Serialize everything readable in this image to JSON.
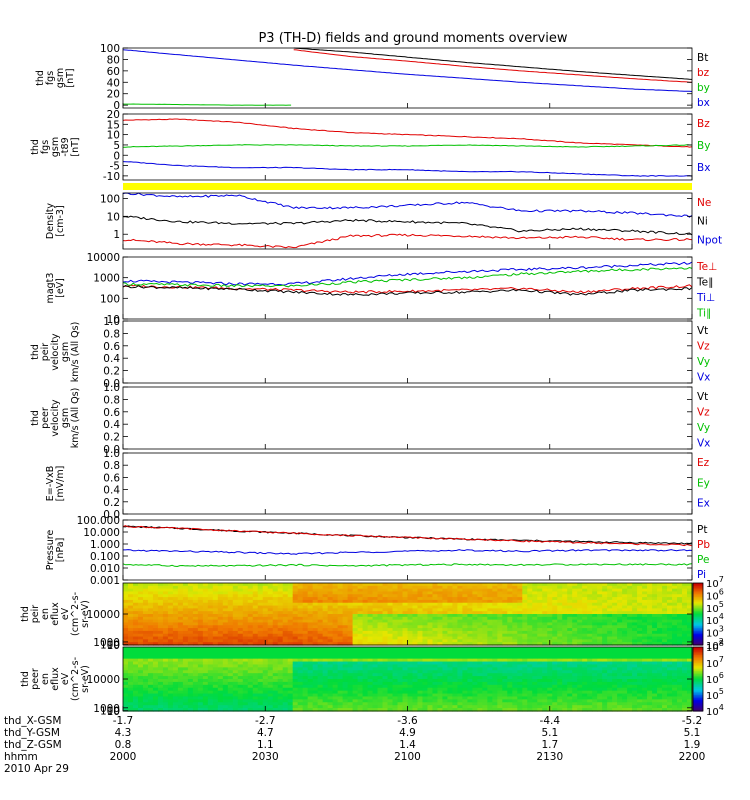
{
  "title": "P3 (TH-D) fields and ground moments overview",
  "colors": {
    "black": "#000000",
    "red": "#e00000",
    "green": "#00c000",
    "blue": "#0000e0",
    "yellow": "#ffff00"
  },
  "chart_data": [
    {
      "id": "fgs_total",
      "type": "line",
      "ylabel": [
        "thd",
        "fgs",
        "gsm",
        "[nT]"
      ],
      "ylim": [
        -5,
        100
      ],
      "yticks": [
        "100",
        "80",
        "60",
        "40",
        "20",
        "0"
      ],
      "ytick_values": [
        100,
        80,
        60,
        40,
        20,
        0
      ],
      "x": [
        0,
        0.1,
        0.2,
        0.3,
        0.4,
        0.5,
        0.6,
        0.7,
        0.8,
        0.9,
        1
      ],
      "series": [
        {
          "name": "Bt",
          "color": "black",
          "values": [
            null,
            null,
            null,
            100,
            93,
            84,
            75,
            67,
            59,
            52,
            45
          ]
        },
        {
          "name": "bz",
          "color": "red",
          "values": [
            null,
            null,
            null,
            97,
            85,
            77,
            68,
            60,
            53,
            46,
            40
          ]
        },
        {
          "name": "by",
          "color": "green",
          "values": [
            2,
            1,
            0,
            0,
            null,
            null,
            null,
            null,
            null,
            null,
            null
          ]
        },
        {
          "name": "bx",
          "color": "blue",
          "values": [
            97,
            88,
            79,
            70,
            62,
            54,
            47,
            40,
            34,
            28,
            24
          ]
        }
      ]
    },
    {
      "id": "fgs_components",
      "type": "line",
      "ylabel": [
        "thd",
        "fgs",
        "gsm",
        "-t89",
        "[nT]"
      ],
      "ylim": [
        -12,
        20
      ],
      "yticks": [
        "20",
        "15",
        "10",
        "5",
        "0",
        "-5",
        "-10"
      ],
      "ytick_values": [
        20,
        15,
        10,
        5,
        0,
        -5,
        -10
      ],
      "x": [
        0,
        0.1,
        0.2,
        0.3,
        0.4,
        0.5,
        0.6,
        0.7,
        0.8,
        0.9,
        1
      ],
      "series": [
        {
          "name": "Bz",
          "color": "red",
          "values": [
            17,
            17.5,
            16,
            13,
            11,
            10,
            9,
            8,
            6,
            5,
            4
          ]
        },
        {
          "name": "By",
          "color": "green",
          "values": [
            4,
            4.5,
            5,
            5,
            4.5,
            4.5,
            5,
            4.5,
            4,
            4.5,
            5
          ]
        },
        {
          "name": "Bx",
          "color": "blue",
          "values": [
            -3,
            -5,
            -6,
            -6,
            -7,
            -7,
            -8,
            -8,
            -9,
            -10,
            -10
          ]
        }
      ]
    },
    {
      "id": "density",
      "type": "line",
      "log": true,
      "ylabel": [
        "Density",
        "[cm-3]"
      ],
      "ylim": [
        0.15,
        200
      ],
      "yticks": [
        "100",
        "10",
        "1"
      ],
      "ytick_values": [
        100,
        10,
        1
      ],
      "x": [
        0,
        0.1,
        0.2,
        0.3,
        0.4,
        0.5,
        0.6,
        0.7,
        0.8,
        0.9,
        1
      ],
      "series": [
        {
          "name": "Ne",
          "color": "red",
          "values": [
            0.5,
            0.3,
            0.25,
            0.18,
            0.8,
            0.9,
            0.8,
            0.6,
            0.7,
            0.5,
            0.5
          ]
        },
        {
          "name": "Ni",
          "color": "black",
          "values": [
            10,
            5,
            4,
            4,
            6,
            5,
            4,
            1.5,
            2,
            1.5,
            1
          ]
        },
        {
          "name": "Npot",
          "color": "blue",
          "values": [
            200,
            120,
            150,
            30,
            30,
            40,
            60,
            20,
            20,
            15,
            10
          ]
        }
      ]
    },
    {
      "id": "temperature",
      "type": "line",
      "log": true,
      "ylabel": [
        "magt3",
        "[eV]"
      ],
      "ylim": [
        10,
        10000
      ],
      "yticks": [
        "10000",
        "1000",
        "100",
        "10"
      ],
      "ytick_values": [
        10000,
        1000,
        100,
        10
      ],
      "x": [
        0,
        0.1,
        0.2,
        0.3,
        0.4,
        0.5,
        0.6,
        0.7,
        0.8,
        0.9,
        1
      ],
      "series": [
        {
          "name": "Te⊥",
          "color": "red",
          "values": [
            400,
            350,
            300,
            250,
            200,
            220,
            250,
            300,
            200,
            300,
            400
          ]
        },
        {
          "name": "Te∥",
          "color": "black",
          "values": [
            380,
            320,
            280,
            200,
            150,
            180,
            200,
            250,
            150,
            250,
            300
          ]
        },
        {
          "name": "Ti⊥",
          "color": "blue",
          "values": [
            700,
            600,
            500,
            500,
            900,
            1500,
            2000,
            2500,
            3000,
            4000,
            5000
          ]
        },
        {
          "name": "Ti∥",
          "color": "green",
          "values": [
            500,
            450,
            400,
            400,
            600,
            800,
            1000,
            1500,
            2000,
            2500,
            3000
          ]
        }
      ]
    },
    {
      "id": "peir_velocity",
      "type": "line",
      "ylabel": [
        "thd",
        "peir",
        "velocity",
        "gsm",
        "km/s (All Qs)"
      ],
      "ylim": [
        0,
        1
      ],
      "yticks": [
        "1.0",
        "0.8",
        "0.6",
        "0.4",
        "0.2",
        "0.0"
      ],
      "ytick_values": [
        1,
        0.8,
        0.6,
        0.4,
        0.2,
        0
      ],
      "legend": [
        {
          "name": "Vt",
          "color": "black"
        },
        {
          "name": "Vz",
          "color": "red"
        },
        {
          "name": "Vy",
          "color": "green"
        },
        {
          "name": "Vx",
          "color": "blue"
        }
      ]
    },
    {
      "id": "peer_velocity",
      "type": "line",
      "ylabel": [
        "thd",
        "peer",
        "velocity",
        "gsm",
        "km/s (All Qs)"
      ],
      "ylim": [
        0,
        1
      ],
      "yticks": [
        "1.0",
        "0.8",
        "0.6",
        "0.4",
        "0.2",
        "0.0"
      ],
      "ytick_values": [
        1,
        0.8,
        0.6,
        0.4,
        0.2,
        0
      ],
      "legend": [
        {
          "name": "Vt",
          "color": "black"
        },
        {
          "name": "Vz",
          "color": "red"
        },
        {
          "name": "Vy",
          "color": "green"
        },
        {
          "name": "Vx",
          "color": "blue"
        }
      ]
    },
    {
      "id": "efield",
      "type": "line",
      "ylabel": [
        "E=-VxB",
        "[mV/m]"
      ],
      "ylim": [
        0,
        1
      ],
      "yticks": [
        "1.0",
        "0.8",
        "0.6",
        "0.4",
        "0.2",
        "0.0"
      ],
      "ytick_values": [
        1,
        0.8,
        0.6,
        0.4,
        0.2,
        0
      ],
      "legend": [
        {
          "name": "Ez",
          "color": "red"
        },
        {
          "name": "Ey",
          "color": "green"
        },
        {
          "name": "Ex",
          "color": "blue"
        }
      ]
    },
    {
      "id": "pressure",
      "type": "line",
      "log": true,
      "ylabel": [
        "Pressure",
        "[nPa]"
      ],
      "ylim": [
        0.001,
        100
      ],
      "yticks": [
        "100.000",
        "10.000",
        "1.000",
        "0.100",
        "0.010",
        "0.001"
      ],
      "ytick_values": [
        100,
        10,
        1,
        0.1,
        0.01,
        0.001
      ],
      "x": [
        0,
        0.1,
        0.2,
        0.3,
        0.4,
        0.5,
        0.6,
        0.7,
        0.8,
        0.9,
        1
      ],
      "series": [
        {
          "name": "Pt",
          "color": "black",
          "values": [
            30,
            20,
            12,
            8,
            5,
            3.5,
            2.5,
            2,
            1.6,
            1.3,
            1.1
          ]
        },
        {
          "name": "Pb",
          "color": "red",
          "values": [
            30,
            20,
            12,
            8,
            5,
            3.5,
            2.5,
            1.8,
            1.3,
            1,
            0.8
          ]
        },
        {
          "name": "Pe",
          "color": "green",
          "values": [
            0.02,
            0.015,
            0.015,
            0.018,
            0.015,
            0.018,
            0.02,
            0.018,
            0.02,
            0.02,
            0.02
          ]
        },
        {
          "name": "Pi",
          "color": "blue",
          "values": [
            0.3,
            0.25,
            0.2,
            0.15,
            0.2,
            0.25,
            0.3,
            0.25,
            0.3,
            0.3,
            0.3
          ]
        }
      ]
    },
    {
      "id": "peir_spectrogram",
      "type": "heatmap",
      "ylabel": [
        "thd",
        "peir",
        "en",
        "eflux",
        "eV",
        "(cm^2-s-",
        "sr-eV)"
      ],
      "ylim": [
        5,
        20000
      ],
      "yticks": [
        "10000",
        "1000",
        "100",
        "10"
      ],
      "ytick_values": [
        10000,
        1000,
        100,
        10
      ],
      "colorbar": {
        "min_exp": 2,
        "max_exp": 7,
        "labels": [
          "10^7",
          "10^6",
          "10^5",
          "10^4",
          "10^3",
          "10^2"
        ]
      }
    },
    {
      "id": "peer_spectrogram",
      "type": "heatmap",
      "ylabel": [
        "thd",
        "peer",
        "en",
        "eflux",
        "eV",
        "(cm^2-s-",
        "sr-eV)"
      ],
      "ylim": [
        5,
        20000
      ],
      "yticks": [
        "10000",
        "1000",
        "100",
        "10"
      ],
      "ytick_values": [
        10000,
        1000,
        100,
        10
      ],
      "colorbar": {
        "min_exp": 4,
        "max_exp": 8,
        "labels": [
          "10^8",
          "10^7",
          "10^6",
          "10^5",
          "10^4"
        ]
      }
    }
  ],
  "x_axis": {
    "row_labels": [
      "thd_X-GSM",
      "thd_Y-GSM",
      "thd_Z-GSM",
      "hhmm",
      "2010 Apr 29"
    ],
    "ticks": [
      {
        "x": "-1.7",
        "y": "4.3",
        "z": "0.8",
        "hhmm": "2000"
      },
      {
        "x": "-2.7",
        "y": "4.7",
        "z": "1.1",
        "hhmm": "2030"
      },
      {
        "x": "-3.6",
        "y": "4.9",
        "z": "1.4",
        "hhmm": "2100"
      },
      {
        "x": "-4.4",
        "y": "5.1",
        "z": "1.7",
        "hhmm": "2130"
      },
      {
        "x": "-5.2",
        "y": "5.1",
        "z": "1.9",
        "hhmm": "2200"
      }
    ]
  }
}
